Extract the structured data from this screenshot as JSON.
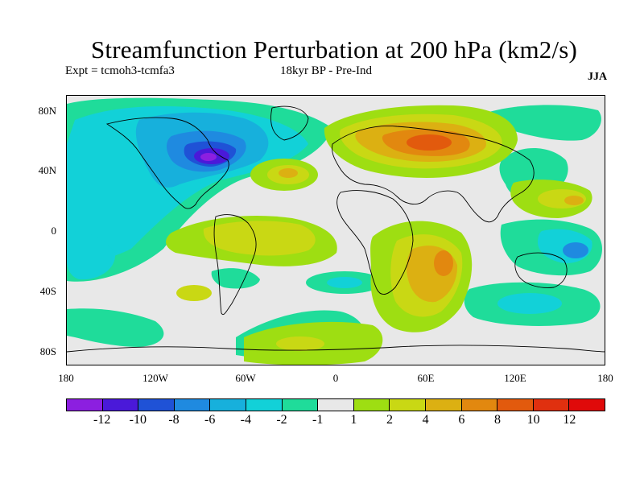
{
  "title": "Streamfunction Perturbation at 200 hPa (km2/s)",
  "subtitle_left": "Expt = tcmoh3-tcmfa3",
  "subtitle_center": "18kyr BP - Pre-Ind",
  "season": "JJA",
  "lat_labels": [
    "80N",
    "40N",
    "0",
    "40S",
    "80S"
  ],
  "lon_labels": [
    "180",
    "120W",
    "60W",
    "0",
    "60E",
    "120E",
    "180"
  ],
  "colorbar": {
    "colors": [
      "#8c1fe0",
      "#4a19d9",
      "#1f52d6",
      "#1f8ae0",
      "#17b0dc",
      "#12d1d8",
      "#1fdc9a",
      "#e8e8e8",
      "#9ede12",
      "#c9d814",
      "#dcb012",
      "#e2880f",
      "#e25a0d",
      "#e0300f",
      "#e00a0a"
    ],
    "labels": [
      "-12",
      "-10",
      "-8",
      "-6",
      "-4",
      "-2",
      "-1",
      "1",
      "2",
      "4",
      "6",
      "8",
      "10",
      "12"
    ]
  }
}
